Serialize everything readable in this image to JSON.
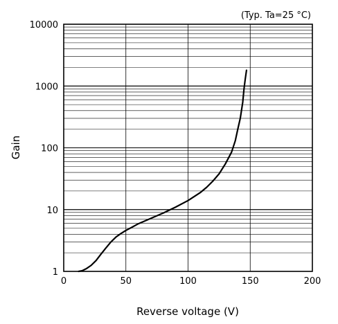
{
  "chart_data": {
    "type": "line",
    "annotation": "(Typ. Ta=25 °C)",
    "xlabel": "Reverse voltage (V)",
    "ylabel": "Gain",
    "xlim": [
      0,
      200
    ],
    "ylim": [
      1,
      10000
    ],
    "yscale": "log",
    "grid": true,
    "x_ticks": [
      "0",
      "50",
      "100",
      "150",
      "200"
    ],
    "y_ticks": [
      "1",
      "10",
      "100",
      "1000",
      "10000"
    ],
    "series": [
      {
        "color": "#000000",
        "x": [
          12,
          15,
          18,
          22,
          26,
          30,
          34,
          38,
          42,
          46,
          50,
          55,
          60,
          70,
          80,
          90,
          100,
          110,
          115,
          120,
          125,
          130,
          135,
          138,
          140,
          142,
          144,
          145,
          146,
          147
        ],
        "y": [
          1.0,
          1.03,
          1.1,
          1.25,
          1.5,
          1.9,
          2.4,
          3.0,
          3.6,
          4.1,
          4.6,
          5.2,
          5.9,
          7.2,
          8.8,
          11,
          14,
          19,
          23,
          29,
          38,
          55,
          85,
          130,
          200,
          300,
          550,
          900,
          1300,
          1800
        ]
      }
    ]
  }
}
